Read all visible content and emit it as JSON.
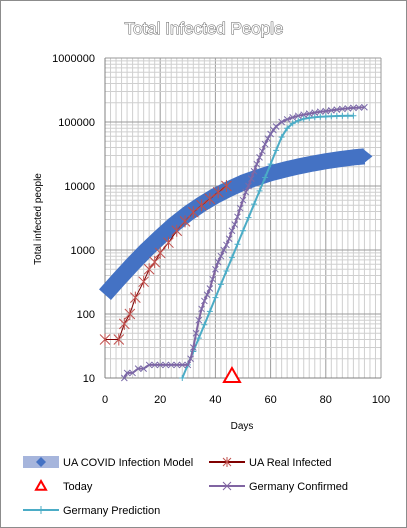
{
  "chart_data": {
    "type": "line",
    "title": "Total Infected People",
    "xlabel": "Days",
    "ylabel": "Total infected people",
    "yscale": "log",
    "xlim": [
      0,
      100
    ],
    "ylim": [
      10,
      1000000
    ],
    "x_ticks": [
      "0",
      "20",
      "40",
      "60",
      "80",
      "100"
    ],
    "y_ticks": [
      "10",
      "100",
      "1000",
      "10000",
      "100000",
      "1000000"
    ],
    "grid": true,
    "legend_position": "bottom",
    "series": [
      {
        "name": "UA COVID Infection Model",
        "color": "#4472c4",
        "style": "thick-band",
        "x": [
          0,
          5,
          10,
          15,
          20,
          25,
          30,
          35,
          40,
          45,
          50,
          55,
          60,
          65,
          70,
          75,
          80,
          85,
          90,
          94
        ],
        "y": [
          200,
          350,
          600,
          1000,
          1600,
          2500,
          3700,
          5200,
          7000,
          9000,
          11300,
          13500,
          15800,
          18000,
          20200,
          22300,
          24300,
          26200,
          28000,
          29000
        ]
      },
      {
        "name": "UA Real Infected",
        "color": "#c0504d",
        "marker": "star",
        "x": [
          0,
          5,
          7,
          9,
          11,
          14,
          16,
          18,
          20,
          23,
          26,
          29,
          32,
          35,
          38,
          41,
          44
        ],
        "y": [
          40,
          40,
          70,
          100,
          180,
          320,
          500,
          650,
          900,
          1300,
          2000,
          2800,
          3900,
          5000,
          6300,
          8000,
          10000
        ]
      },
      {
        "name": "Today",
        "color": "#ff0000",
        "marker": "triangle",
        "x": [
          46
        ],
        "y": [
          10
        ]
      },
      {
        "name": "Germany Confirmed",
        "color": "#8064a2",
        "marker": "x",
        "x": [
          7,
          8,
          10,
          12,
          14,
          16,
          18,
          20,
          22,
          24,
          26,
          28,
          30,
          31,
          32,
          33,
          34,
          35,
          36,
          37,
          38,
          39,
          40,
          41,
          42,
          43,
          44,
          45,
          46,
          47,
          48,
          49,
          50,
          51,
          52,
          53,
          54,
          55,
          56,
          57,
          58,
          59,
          60,
          61,
          62,
          64,
          66,
          68,
          70,
          72,
          74,
          76,
          78,
          80,
          82,
          84,
          86,
          88,
          90,
          92,
          94
        ],
        "y": [
          10,
          12,
          12,
          14,
          14,
          16,
          16,
          16,
          16,
          16,
          16,
          16,
          16,
          20,
          30,
          50,
          80,
          120,
          160,
          200,
          250,
          350,
          500,
          650,
          800,
          1000,
          1200,
          1500,
          2000,
          2500,
          3300,
          4500,
          6000,
          8000,
          10000,
          13000,
          17000,
          22000,
          28000,
          35000,
          45000,
          55000,
          65000,
          75000,
          85000,
          100000,
          110000,
          118000,
          125000,
          130000,
          135000,
          140000,
          145000,
          148000,
          152000,
          156000,
          160000,
          163000,
          166000,
          168000,
          170000
        ]
      },
      {
        "name": "Germany Prediction",
        "color": "#4bacc6",
        "marker": "cross",
        "x": [
          28,
          30,
          32,
          34,
          36,
          38,
          40,
          42,
          44,
          46,
          48,
          50,
          52,
          54,
          56,
          58,
          60,
          62,
          64,
          66,
          68,
          70,
          72,
          74,
          76,
          78,
          80,
          82,
          84,
          86,
          88,
          90
        ],
        "y": [
          10,
          16,
          26,
          42,
          68,
          110,
          180,
          290,
          470,
          760,
          1230,
          2000,
          3200,
          5200,
          8400,
          13600,
          22000,
          36000,
          58000,
          80000,
          95000,
          105000,
          112000,
          116000,
          119000,
          121000,
          122000,
          123000,
          124000,
          124500,
          125000,
          125000
        ]
      }
    ]
  }
}
